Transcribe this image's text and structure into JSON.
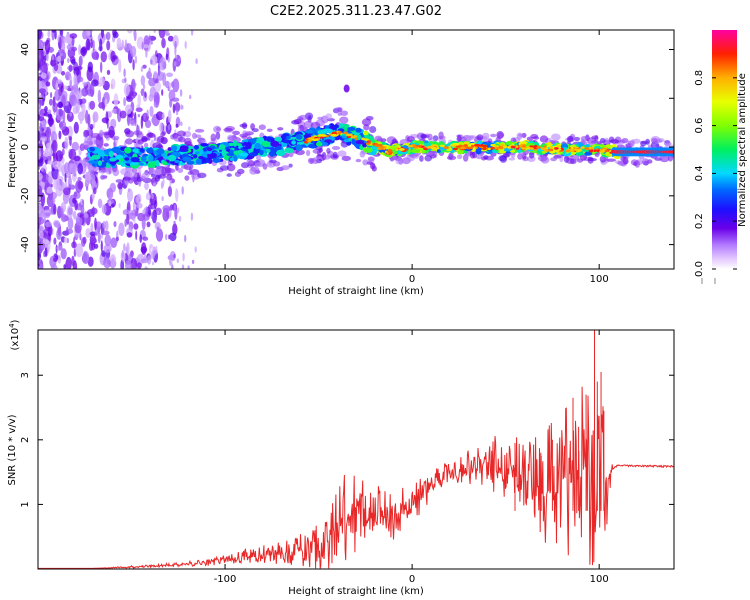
{
  "title": "C2E2.2025.311.23.47.G02",
  "colorbar": {
    "label": "Normalized spectral amplitude",
    "ticks": [
      "0.0",
      "0.2",
      "0.4",
      "0.6",
      "0.8"
    ],
    "tick_values": [
      0.0,
      0.2,
      0.4,
      0.6,
      0.8
    ],
    "range": [
      0,
      1
    ]
  },
  "chart_data": [
    {
      "type": "heatmap",
      "title": "C2E2.2025.311.23.47.G02",
      "xlabel": "Height of straight line (km)",
      "ylabel": "Frequency (Hz)",
      "xlim": [
        -200,
        140
      ],
      "ylim": [
        -50,
        48
      ],
      "x_ticks": [
        -100,
        0,
        100
      ],
      "x_tick_labels": [
        "-100",
        "0",
        "100"
      ],
      "y_ticks": [
        -40,
        -20,
        0,
        20,
        40
      ],
      "y_tick_labels": [
        "-40",
        "-20",
        "0",
        "20",
        "40"
      ],
      "ridge_x": [
        -175,
        -160,
        -140,
        -120,
        -100,
        -80,
        -60,
        -45,
        -38,
        -30,
        -20,
        -12,
        -5,
        0,
        20,
        40,
        60,
        80,
        100,
        110,
        140
      ],
      "ridge_y": [
        -4,
        -4,
        -4,
        -3,
        -2,
        0,
        2,
        5,
        6,
        4,
        1,
        -2,
        -1,
        0,
        0,
        0,
        0,
        -1,
        -1,
        -2,
        -2
      ]
    },
    {
      "type": "line",
      "xlabel": "Height of straight line (km)",
      "ylabel": "SNR (10 * v/v)",
      "y_multiplier": "(x10",
      "y_multiplier_exp": "4",
      "xlim": [
        -200,
        140
      ],
      "ylim": [
        0,
        3.7
      ],
      "x_ticks": [
        -100,
        0,
        100
      ],
      "x_tick_labels": [
        "-100",
        "0",
        "100"
      ],
      "y_ticks": [
        1,
        2,
        3
      ],
      "y_tick_labels": [
        "1",
        "2",
        "3"
      ],
      "color": "#e82828",
      "series": [
        {
          "name": "SNR",
          "x": [
            -200,
            -170,
            -150,
            -130,
            -110,
            -100,
            -90,
            -80,
            -70,
            -60,
            -50,
            -45,
            -40,
            -35,
            -30,
            -25,
            -20,
            -15,
            -10,
            -5,
            0,
            10,
            20,
            30,
            40,
            50,
            60,
            70,
            80,
            90,
            95,
            100,
            103,
            105,
            107,
            110,
            120,
            130,
            140
          ],
          "y": [
            0.01,
            0.01,
            0.03,
            0.06,
            0.1,
            0.15,
            0.2,
            0.22,
            0.25,
            0.28,
            0.35,
            0.45,
            0.6,
            0.75,
            0.85,
            0.95,
            0.9,
            0.85,
            0.75,
            0.9,
            1.05,
            1.3,
            1.5,
            1.6,
            1.65,
            1.55,
            1.45,
            1.4,
            1.5,
            1.4,
            1.6,
            1.2,
            1.1,
            1.5,
            1.55,
            1.6,
            1.6,
            1.59,
            1.59
          ],
          "spread": [
            0,
            0,
            0.02,
            0.03,
            0.06,
            0.1,
            0.15,
            0.2,
            0.25,
            0.35,
            0.5,
            0.6,
            0.75,
            0.9,
            0.7,
            0.6,
            0.5,
            0.45,
            0.4,
            0.4,
            0.35,
            0.3,
            0.3,
            0.35,
            0.4,
            0.7,
            0.9,
            1.2,
            1.3,
            1.5,
            1.9,
            2.3,
            1.6,
            0.6,
            0.2,
            0.04,
            0.03,
            0.03,
            0.03
          ],
          "peaks": [
            [
              97.5,
              3.72
            ],
            [
              101,
              3.05
            ],
            [
              99,
              2.9
            ],
            [
              86,
              2.65
            ],
            [
              93,
              2.7
            ],
            [
              75,
              2.0
            ],
            [
              69,
              1.75
            ],
            [
              55,
              1.95
            ],
            [
              102.5,
              2.45
            ],
            [
              89,
              2.2
            ]
          ]
        }
      ]
    }
  ]
}
